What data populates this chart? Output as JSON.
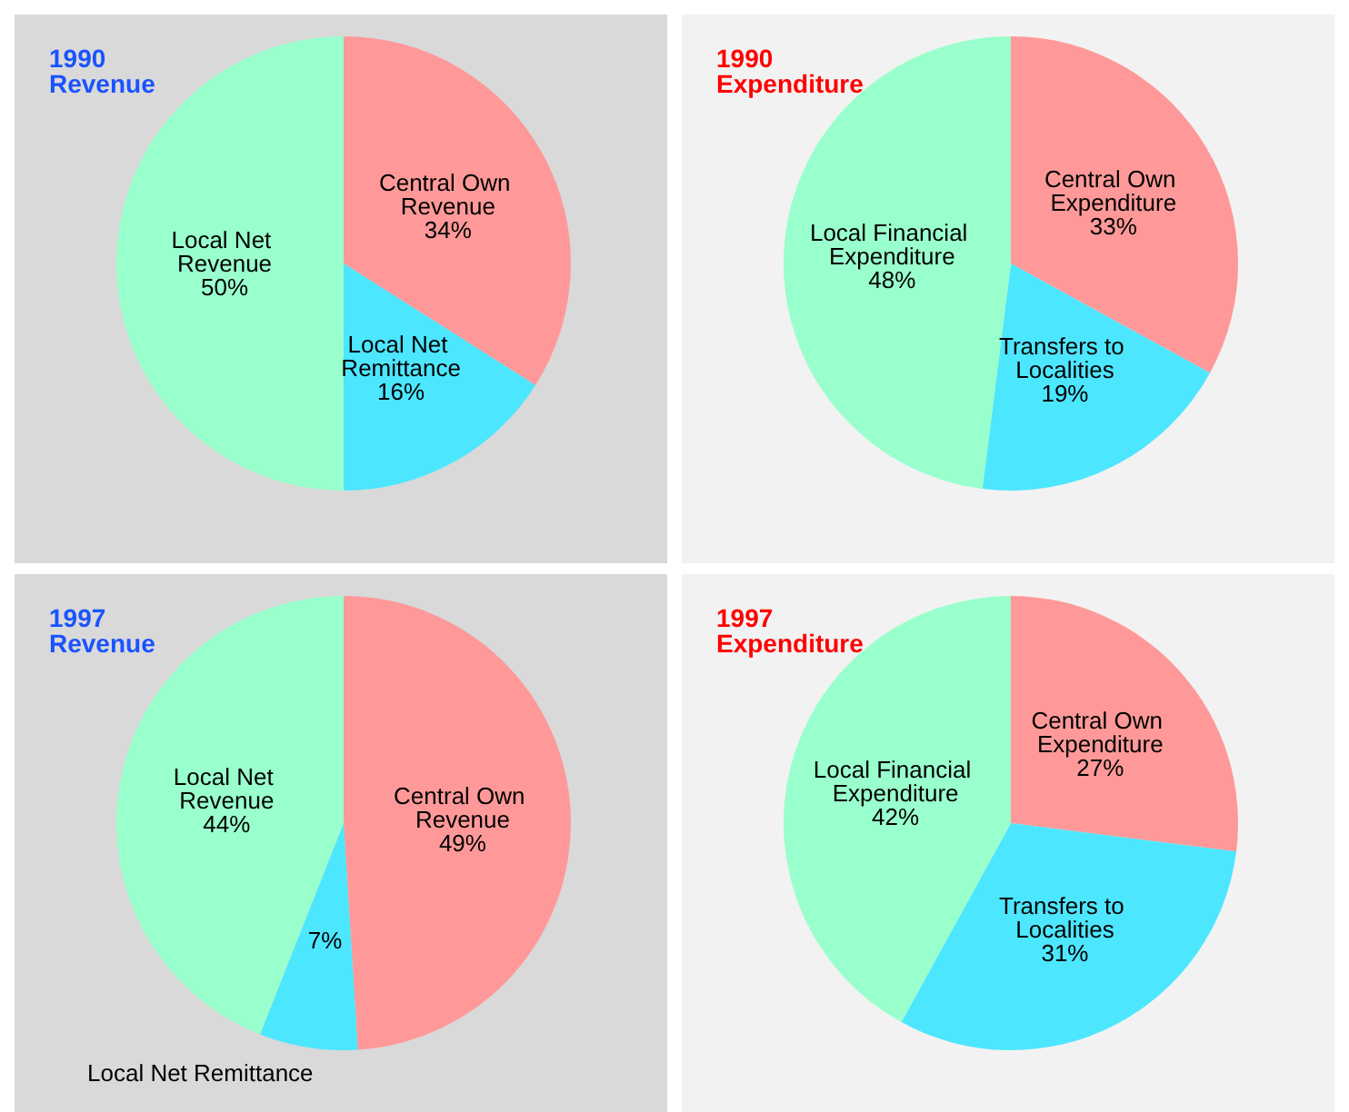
{
  "chart_data": [
    {
      "type": "pie",
      "title": "1990",
      "subtitle": "Revenue",
      "categories": [
        "Central Own Revenue",
        "Local Net Remittance",
        "Local Net Revenue"
      ],
      "values": [
        34,
        16,
        50
      ],
      "value_labels": [
        "34%",
        "16%",
        "50%"
      ],
      "colors": [
        "#ff9999",
        "#4de6ff",
        "#99ffcc"
      ],
      "legend": false
    },
    {
      "type": "pie",
      "title": "1990",
      "subtitle": "Expenditure",
      "categories": [
        "Central Own Expenditure",
        "Transfers to Localities",
        "Local Financial Expenditure"
      ],
      "values": [
        33,
        19,
        48
      ],
      "value_labels": [
        "33%",
        "19%",
        "48%"
      ],
      "colors": [
        "#ff9999",
        "#4de6ff",
        "#99ffcc"
      ],
      "legend": false
    },
    {
      "type": "pie",
      "title": "1997",
      "subtitle": "Revenue",
      "categories": [
        "Central Own Revenue",
        "Local Net Remittance",
        "Local Net Revenue"
      ],
      "values": [
        49,
        7,
        44
      ],
      "value_labels": [
        "49%",
        "7%",
        "44%"
      ],
      "colors": [
        "#ff9999",
        "#4de6ff",
        "#99ffcc"
      ],
      "legend": false
    },
    {
      "type": "pie",
      "title": "1997",
      "subtitle": "Expenditure",
      "categories": [
        "Central Own Expenditure",
        "Transfers to Localities",
        "Local Financial Expenditure"
      ],
      "values": [
        27,
        31,
        42
      ],
      "value_labels": [
        "27%",
        "31%",
        "42%"
      ],
      "colors": [
        "#ff9999",
        "#4de6ff",
        "#99ffcc"
      ],
      "legend": false
    }
  ]
}
